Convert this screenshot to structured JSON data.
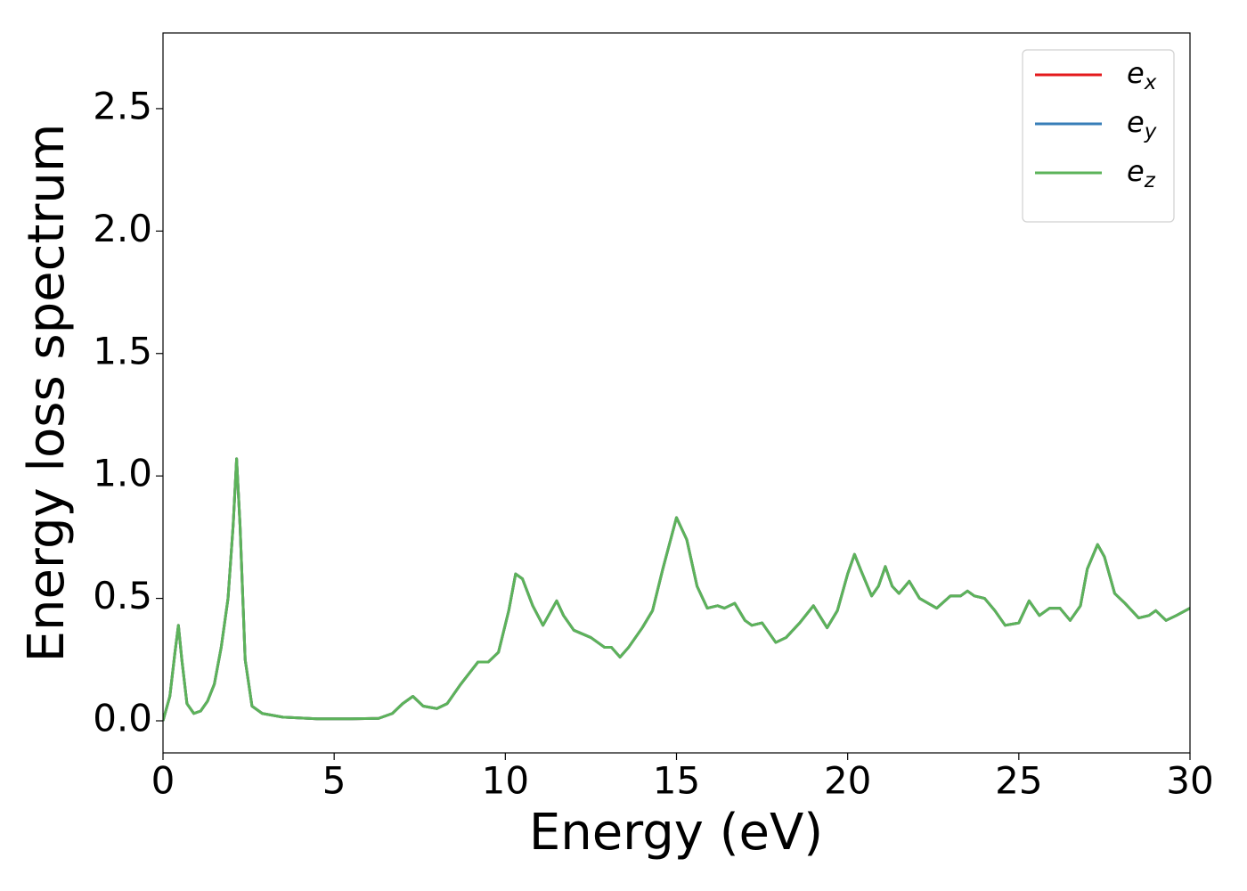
{
  "chart_data": {
    "type": "line",
    "x_label": "Energy (eV)",
    "y_label": "Energy loss spectrum",
    "xlim": [
      0,
      30
    ],
    "ylim": [
      -0.131,
      2.809
    ],
    "xticks": [
      0,
      5,
      10,
      15,
      20,
      25,
      30
    ],
    "yticks": [
      {
        "value": 0,
        "label": "0.0"
      },
      {
        "value": 0.5,
        "label": "0.5"
      },
      {
        "value": 1,
        "label": "1.0"
      },
      {
        "value": 1.5,
        "label": "1.5"
      },
      {
        "value": 2,
        "label": "2.0"
      },
      {
        "value": 2.5,
        "label": "2.5"
      }
    ],
    "legend": "upper right",
    "x": [
      0,
      0.2,
      0.35,
      0.45,
      0.55,
      0.7,
      0.9,
      1.1,
      1.3,
      1.5,
      1.7,
      1.9,
      2.05,
      2.15,
      2.25,
      2.4,
      2.6,
      2.9,
      3.5,
      4.5,
      5.5,
      6.3,
      6.7,
      7.0,
      7.3,
      7.6,
      8.0,
      8.3,
      8.7,
      9.2,
      9.5,
      9.8,
      10.1,
      10.3,
      10.5,
      10.8,
      11.1,
      11.3,
      11.5,
      11.7,
      12.0,
      12.5,
      12.9,
      13.1,
      13.35,
      13.6,
      14.0,
      14.3,
      14.6,
      15.0,
      15.3,
      15.6,
      15.9,
      16.2,
      16.4,
      16.7,
      17.0,
      17.2,
      17.5,
      17.9,
      18.2,
      18.6,
      19.0,
      19.4,
      19.7,
      20.0,
      20.2,
      20.4,
      20.7,
      20.9,
      21.1,
      21.3,
      21.5,
      21.8,
      22.1,
      22.6,
      23.0,
      23.3,
      23.5,
      23.7,
      24.0,
      24.3,
      24.6,
      25.0,
      25.3,
      25.6,
      25.9,
      26.2,
      26.5,
      26.8,
      27.0,
      27.3,
      27.5,
      27.8,
      28.1,
      28.5,
      28.8,
      29.0,
      29.3,
      29.6,
      30.0
    ],
    "series": [
      {
        "name": "e_x",
        "color": "#e41a1c",
        "values": [
          0,
          0.1,
          0.28,
          0.39,
          0.25,
          0.07,
          0.03,
          0.04,
          0.08,
          0.15,
          0.3,
          0.5,
          0.8,
          1.07,
          0.8,
          0.25,
          0.06,
          0.03,
          0.015,
          0.008,
          0.008,
          0.01,
          0.03,
          0.07,
          0.1,
          0.06,
          0.05,
          0.07,
          0.15,
          0.24,
          0.24,
          0.28,
          0.45,
          0.6,
          0.58,
          0.47,
          0.39,
          0.44,
          0.49,
          0.43,
          0.37,
          0.34,
          0.3,
          0.3,
          0.26,
          0.3,
          0.38,
          0.45,
          0.62,
          0.83,
          0.74,
          0.55,
          0.46,
          0.47,
          0.46,
          0.48,
          0.41,
          0.39,
          0.4,
          0.32,
          0.34,
          0.4,
          0.47,
          0.38,
          0.45,
          0.6,
          0.68,
          0.61,
          0.51,
          0.55,
          0.63,
          0.55,
          0.52,
          0.57,
          0.5,
          0.46,
          0.51,
          0.51,
          0.53,
          0.51,
          0.5,
          0.45,
          0.39,
          0.4,
          0.49,
          0.43,
          0.46,
          0.46,
          0.41,
          0.47,
          0.62,
          0.72,
          0.67,
          0.52,
          0.48,
          0.42,
          0.43,
          0.45,
          0.41,
          0.43,
          0.46
        ]
      },
      {
        "name": "e_y",
        "color": "#377eb8",
        "values": [
          0,
          0.1,
          0.28,
          0.39,
          0.25,
          0.07,
          0.03,
          0.04,
          0.08,
          0.15,
          0.3,
          0.5,
          0.8,
          1.07,
          0.8,
          0.25,
          0.06,
          0.03,
          0.015,
          0.008,
          0.008,
          0.01,
          0.03,
          0.07,
          0.1,
          0.06,
          0.05,
          0.07,
          0.15,
          0.24,
          0.24,
          0.28,
          0.45,
          0.6,
          0.58,
          0.47,
          0.39,
          0.44,
          0.49,
          0.43,
          0.37,
          0.34,
          0.3,
          0.3,
          0.26,
          0.3,
          0.38,
          0.45,
          0.62,
          0.83,
          0.74,
          0.55,
          0.46,
          0.47,
          0.46,
          0.48,
          0.41,
          0.39,
          0.4,
          0.32,
          0.34,
          0.4,
          0.47,
          0.38,
          0.45,
          0.6,
          0.68,
          0.61,
          0.51,
          0.55,
          0.63,
          0.55,
          0.52,
          0.57,
          0.5,
          0.46,
          0.51,
          0.51,
          0.53,
          0.51,
          0.5,
          0.45,
          0.39,
          0.4,
          0.49,
          0.43,
          0.46,
          0.46,
          0.41,
          0.47,
          0.62,
          0.72,
          0.67,
          0.52,
          0.48,
          0.42,
          0.43,
          0.45,
          0.41,
          0.43,
          0.46
        ]
      },
      {
        "name": "e_z",
        "color": "#5cb35a",
        "values": [
          0,
          0.1,
          0.28,
          0.39,
          0.25,
          0.07,
          0.03,
          0.04,
          0.08,
          0.15,
          0.3,
          0.5,
          0.8,
          1.07,
          0.8,
          0.25,
          0.06,
          0.03,
          0.015,
          0.008,
          0.008,
          0.01,
          0.03,
          0.07,
          0.1,
          0.06,
          0.05,
          0.07,
          0.15,
          0.24,
          0.24,
          0.28,
          0.45,
          0.6,
          0.58,
          0.47,
          0.39,
          0.44,
          0.49,
          0.43,
          0.37,
          0.34,
          0.3,
          0.3,
          0.26,
          0.3,
          0.38,
          0.45,
          0.62,
          0.83,
          0.74,
          0.55,
          0.46,
          0.47,
          0.46,
          0.48,
          0.41,
          0.39,
          0.4,
          0.32,
          0.34,
          0.4,
          0.47,
          0.38,
          0.45,
          0.6,
          0.68,
          0.61,
          0.51,
          0.55,
          0.63,
          0.55,
          0.52,
          0.57,
          0.5,
          0.46,
          0.51,
          0.51,
          0.53,
          0.51,
          0.5,
          0.45,
          0.39,
          0.4,
          0.49,
          0.43,
          0.46,
          0.46,
          0.41,
          0.47,
          0.62,
          0.72,
          0.67,
          0.52,
          0.48,
          0.42,
          0.43,
          0.45,
          0.41,
          0.43,
          0.46
        ]
      }
    ]
  }
}
